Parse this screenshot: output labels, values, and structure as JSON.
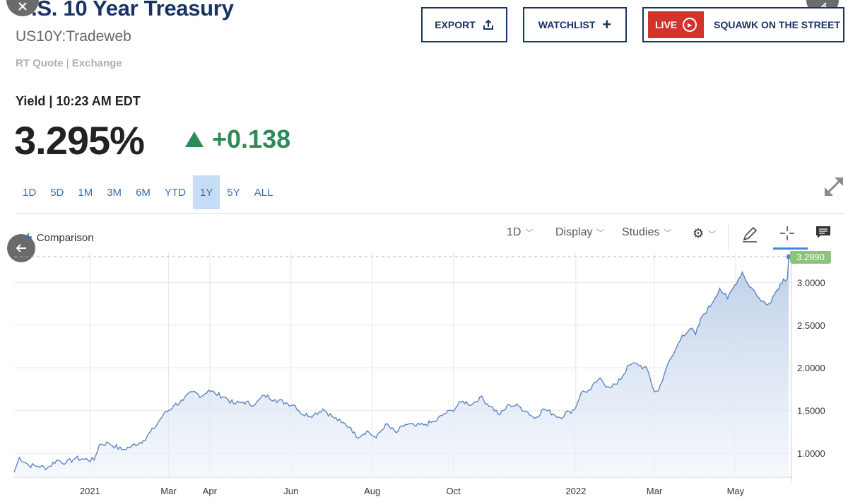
{
  "header": {
    "title": "U.S. 10 Year Treasury",
    "symbol": "US10Y:Tradeweb",
    "rt_quote": "RT Quote",
    "rt_sep": "|",
    "exchange": "Exchange",
    "yield_time": "Yield | 10:23 AM EDT",
    "price": "3.295%",
    "change": "+0.138",
    "change_color": "#2e8b57"
  },
  "buttons": {
    "export": "EXPORT",
    "watchlist": "WATCHLIST",
    "live": "LIVE",
    "squawk": "SQUAWK ON THE STREET"
  },
  "range_tabs": [
    {
      "label": "1D",
      "active": false
    },
    {
      "label": "5D",
      "active": false
    },
    {
      "label": "1M",
      "active": false
    },
    {
      "label": "3M",
      "active": false
    },
    {
      "label": "6M",
      "active": false
    },
    {
      "label": "YTD",
      "active": false
    },
    {
      "label": "1Y",
      "active": true
    },
    {
      "label": "5Y",
      "active": false
    },
    {
      "label": "ALL",
      "active": false
    }
  ],
  "toolbar": {
    "comparison": "Comparison",
    "interval": "1D",
    "display": "Display",
    "studies": "Studies"
  },
  "icons": [
    "close-icon",
    "forward-icon",
    "back-arrow-icon",
    "share-icon",
    "plus-icon",
    "play-icon",
    "expand-icon",
    "gear-icon",
    "pencil-icon",
    "crosshair-icon",
    "comment-icon"
  ],
  "colors": {
    "brand": "#1a3365",
    "live_red": "#d0342c",
    "line": "#5b86c5",
    "last_badge": "#8cc47a",
    "active_tab": "#c7dcf5"
  },
  "chart_data": {
    "type": "area",
    "last_value": "3.2990",
    "y_ticks": [
      "1.0000",
      "1.5000",
      "2.0000",
      "2.5000",
      "3.0000"
    ],
    "ylim": [
      0.72,
      3.35
    ],
    "x_ticks": [
      "2021",
      "Mar",
      "Apr",
      "Jun",
      "Aug",
      "Oct",
      "2022",
      "Mar",
      "May"
    ],
    "x_tick_dates": [
      "2021-01-01",
      "2021-03-01",
      "2021-04-01",
      "2021-06-01",
      "2021-08-01",
      "2021-10-01",
      "2022-01-01",
      "2022-03-01",
      "2022-05-01"
    ],
    "xlim": [
      "2020-11-05",
      "2022-06-12"
    ],
    "series": [
      {
        "points": [
          [
            "2020-11-05",
            0.78
          ],
          [
            "2020-11-09",
            0.95
          ],
          [
            "2020-11-16",
            0.86
          ],
          [
            "2020-11-23",
            0.85
          ],
          [
            "2020-11-30",
            0.83
          ],
          [
            "2020-12-07",
            0.92
          ],
          [
            "2020-12-14",
            0.89
          ],
          [
            "2020-12-21",
            0.94
          ],
          [
            "2020-12-28",
            0.93
          ],
          [
            "2021-01-04",
            0.92
          ],
          [
            "2021-01-08",
            1.1
          ],
          [
            "2021-01-15",
            1.12
          ],
          [
            "2021-01-25",
            1.04
          ],
          [
            "2021-02-01",
            1.08
          ],
          [
            "2021-02-10",
            1.15
          ],
          [
            "2021-02-18",
            1.29
          ],
          [
            "2021-02-25",
            1.45
          ],
          [
            "2021-03-05",
            1.56
          ],
          [
            "2021-03-12",
            1.62
          ],
          [
            "2021-03-19",
            1.72
          ],
          [
            "2021-03-26",
            1.67
          ],
          [
            "2021-03-31",
            1.74
          ],
          [
            "2021-04-05",
            1.7
          ],
          [
            "2021-04-12",
            1.66
          ],
          [
            "2021-04-19",
            1.58
          ],
          [
            "2021-04-26",
            1.6
          ],
          [
            "2021-05-05",
            1.57
          ],
          [
            "2021-05-12",
            1.68
          ],
          [
            "2021-05-20",
            1.63
          ],
          [
            "2021-05-28",
            1.59
          ],
          [
            "2021-06-04",
            1.56
          ],
          [
            "2021-06-10",
            1.45
          ],
          [
            "2021-06-18",
            1.45
          ],
          [
            "2021-06-25",
            1.52
          ],
          [
            "2021-07-02",
            1.43
          ],
          [
            "2021-07-09",
            1.36
          ],
          [
            "2021-07-16",
            1.3
          ],
          [
            "2021-07-20",
            1.19
          ],
          [
            "2021-07-28",
            1.26
          ],
          [
            "2021-08-04",
            1.18
          ],
          [
            "2021-08-11",
            1.34
          ],
          [
            "2021-08-19",
            1.24
          ],
          [
            "2021-08-26",
            1.34
          ],
          [
            "2021-09-03",
            1.32
          ],
          [
            "2021-09-10",
            1.34
          ],
          [
            "2021-09-17",
            1.37
          ],
          [
            "2021-09-24",
            1.46
          ],
          [
            "2021-09-30",
            1.5
          ],
          [
            "2021-10-08",
            1.61
          ],
          [
            "2021-10-15",
            1.57
          ],
          [
            "2021-10-21",
            1.66
          ],
          [
            "2021-10-29",
            1.55
          ],
          [
            "2021-11-05",
            1.45
          ],
          [
            "2021-11-12",
            1.57
          ],
          [
            "2021-11-19",
            1.55
          ],
          [
            "2021-11-26",
            1.48
          ],
          [
            "2021-12-01",
            1.41
          ],
          [
            "2021-12-08",
            1.52
          ],
          [
            "2021-12-15",
            1.46
          ],
          [
            "2021-12-20",
            1.42
          ],
          [
            "2021-12-27",
            1.49
          ],
          [
            "2021-12-31",
            1.51
          ],
          [
            "2022-01-05",
            1.71
          ],
          [
            "2022-01-12",
            1.74
          ],
          [
            "2022-01-18",
            1.87
          ],
          [
            "2022-01-25",
            1.78
          ],
          [
            "2022-02-01",
            1.81
          ],
          [
            "2022-02-10",
            2.03
          ],
          [
            "2022-02-16",
            2.05
          ],
          [
            "2022-02-24",
            1.97
          ],
          [
            "2022-03-01",
            1.72
          ],
          [
            "2022-03-04",
            1.73
          ],
          [
            "2022-03-10",
            2.0
          ],
          [
            "2022-03-16",
            2.18
          ],
          [
            "2022-03-22",
            2.38
          ],
          [
            "2022-03-28",
            2.46
          ],
          [
            "2022-04-01",
            2.39
          ],
          [
            "2022-04-06",
            2.61
          ],
          [
            "2022-04-12",
            2.72
          ],
          [
            "2022-04-19",
            2.93
          ],
          [
            "2022-04-25",
            2.81
          ],
          [
            "2022-04-29",
            2.93
          ],
          [
            "2022-05-06",
            3.12
          ],
          [
            "2022-05-10",
            2.99
          ],
          [
            "2022-05-16",
            2.88
          ],
          [
            "2022-05-20",
            2.78
          ],
          [
            "2022-05-26",
            2.75
          ],
          [
            "2022-06-01",
            2.91
          ],
          [
            "2022-06-06",
            3.04
          ],
          [
            "2022-06-09",
            3.04
          ],
          [
            "2022-06-10",
            3.3
          ]
        ]
      }
    ],
    "grid": true,
    "last_value_line": "dashed"
  }
}
